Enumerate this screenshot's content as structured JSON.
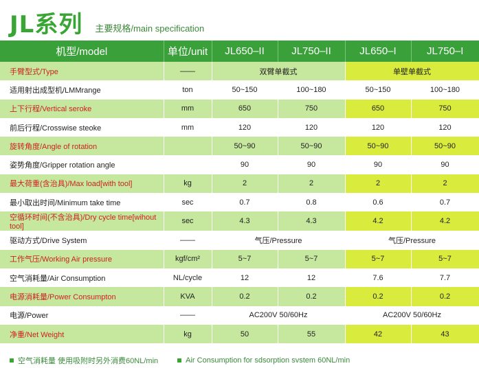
{
  "header": {
    "title": "JL系列",
    "subtitle": "主要规格/main specification"
  },
  "table": {
    "columns": [
      "机型/model",
      "单位/unit",
      "JL650–II",
      "JL750–II",
      "JL650–I",
      "JL750–I"
    ],
    "rows": [
      {
        "label": "手臂型式/Type",
        "unit": "——",
        "span_a": "双臂单截式",
        "span_b": "单壁单截式"
      },
      {
        "label": "适用射出成型机/LMMrange",
        "unit": "ton",
        "v": [
          "50~150",
          "100~180",
          "50~150",
          "100~180"
        ]
      },
      {
        "label": "上下行程/Vertical seroke",
        "unit": "mm",
        "v": [
          "650",
          "750",
          "650",
          "750"
        ]
      },
      {
        "label": "前后行程/Crosswise steoke",
        "unit": "mm",
        "v": [
          "120",
          "120",
          "120",
          "120"
        ]
      },
      {
        "label": "旋转角度/Angle of rotation",
        "unit": "",
        "v": [
          "50~90",
          "50~90",
          "50~90",
          "50~90"
        ]
      },
      {
        "label": "姿势角度/Gripper rotation angle",
        "unit": "",
        "v": [
          "90",
          "90",
          "90",
          "90"
        ]
      },
      {
        "label": "最大荷重(含治具)/Max load[with tool]",
        "unit": "kg",
        "v": [
          "2",
          "2",
          "2",
          "2"
        ]
      },
      {
        "label": "最小取出时间/Minimum take time",
        "unit": "sec",
        "v": [
          "0.7",
          "0.8",
          "0.6",
          "0.7"
        ]
      },
      {
        "label": "空循环时间(不含治具)/Dry cycle time[wihout tool]",
        "unit": "sec",
        "v": [
          "4.3",
          "4.3",
          "4.2",
          "4.2"
        ]
      },
      {
        "label": "驱动方式/Drive System",
        "unit": "——",
        "span_a": "气压/Pressure",
        "span_b": "气压/Pressure"
      },
      {
        "label": "工作气压/Working Air pressure",
        "unit": "kgf/cm²",
        "v": [
          "5~7",
          "5~7",
          "5~7",
          "5~7"
        ]
      },
      {
        "label": "空气消耗量/Air Consumption",
        "unit": "NL/cycle",
        "v": [
          "12",
          "12",
          "7.6",
          "7.7"
        ]
      },
      {
        "label": "电源消耗量/Power Consumpton",
        "unit": "KVA",
        "v": [
          "0.2",
          "0.2",
          "0.2",
          "0.2"
        ]
      },
      {
        "label": "电源/Power",
        "unit": "——",
        "span_a": "AC200V   50/60Hz",
        "span_b": "AC200V   50/60Hz"
      },
      {
        "label": "净重/Net Weight",
        "unit": "kg",
        "v": [
          "50",
          "55",
          "42",
          "43"
        ]
      }
    ]
  },
  "notes": [
    "空气消耗量 使用吸附时另外消费60NL/min",
    "Air Consumption for sdsorption svstem 60NL/min"
  ]
}
